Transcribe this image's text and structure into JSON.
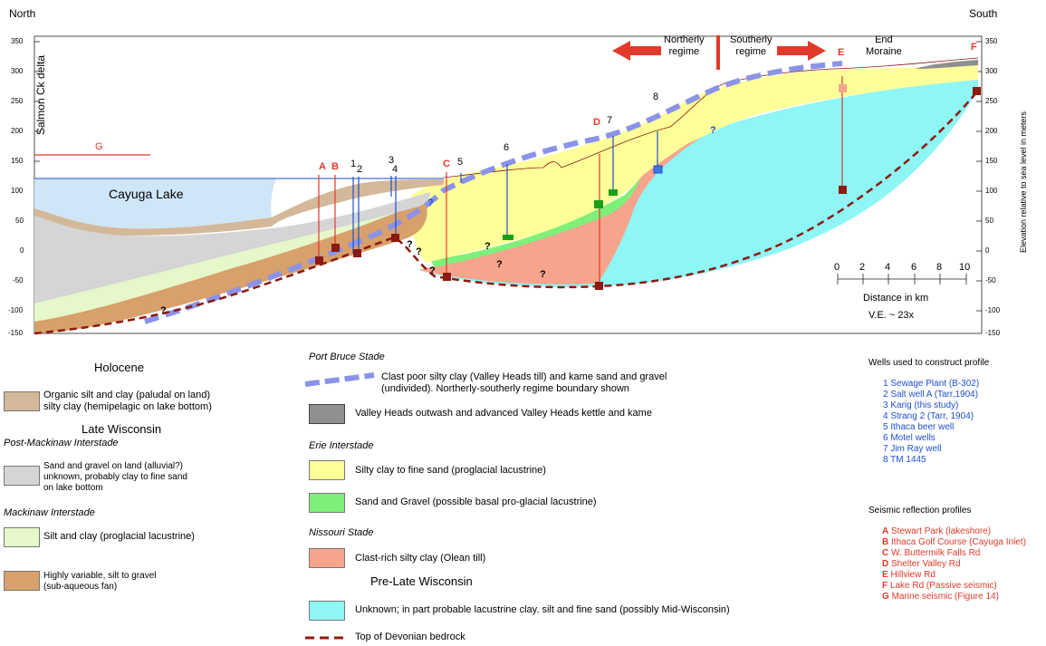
{
  "header": {
    "north": "North",
    "south": "South"
  },
  "axes": {
    "left_ticks": [
      "350",
      "300",
      "250",
      "200",
      "150",
      "100",
      "50",
      "0",
      "-50",
      "-100",
      "-150"
    ],
    "right_ticks": [
      "350",
      "300",
      "250",
      "200",
      "150",
      "100",
      "50",
      "0",
      "-50",
      "-100",
      "-150"
    ],
    "right_label": "Elevation relative to sea level in meters"
  },
  "profile_labels": {
    "salmon_ck": "Salmon Ck delta",
    "cayuga_lake": "Cayuga Lake",
    "northerly": [
      "Northerly",
      "regime"
    ],
    "southerly": [
      "Southerly",
      "regime"
    ],
    "end_moraine": [
      "End",
      "Moraine"
    ],
    "seismic_letters": {
      "A": "A",
      "B": "B",
      "C": "C",
      "D": "D",
      "E": "E",
      "F": "F",
      "G": "G"
    },
    "well_numbers": {
      "n1": "1",
      "n2": "2",
      "n3": "3",
      "n4": "4",
      "n5": "5",
      "n6": "6",
      "n7": "7",
      "n8": "8"
    },
    "question": "?"
  },
  "scale": {
    "ticks": [
      "0",
      "2",
      "4",
      "6",
      "8",
      "10"
    ],
    "label": "Distance in km",
    "ve": "V.E. ~ 23x"
  },
  "legend_left": {
    "holocene_title": "Holocene",
    "holocene_item": [
      "Organic silt and clay (paludal on land)",
      "silty clay (hemipelagic on lake bottom)"
    ],
    "late_wisconsin_title": "Late Wisconsin",
    "post_mackinaw_title": "Post-Mackinaw Interstade",
    "post_mackinaw_item": [
      "Sand and gravel on land (alluvial?)",
      "unknown, probably clay to fine sand",
      "on lake bottom"
    ],
    "mackinaw_title": "Mackinaw Interstade",
    "mackinaw_item": "Silt and clay (proglacial lacustrine)",
    "fan_item": [
      "Highly variable, silt to gravel",
      "(sub-aqueous fan)"
    ]
  },
  "legend_mid": {
    "port_bruce_title": "Port Bruce Stade",
    "till_item": [
      "Clast poor silty clay (Valley Heads till) and kame sand and gravel",
      "(undivided). Northerly-southerly regime boundary shown"
    ],
    "outwash_item": "Valley Heads outwash and advanced Valley Heads kettle and kame",
    "erie_title": "Erie Interstade",
    "silty_item": "Silty clay to fine sand (proglacial lacustrine)",
    "sand_gravel_item": "Sand and Gravel (possible basal pro-glacial lacustrine)",
    "nissouri_title": "Nissouri Stade",
    "olean_item": "Clast-rich silty clay (Olean till)",
    "pre_late_title": "Pre-Late Wisconsin",
    "unknown_item": "Unknown; in part probable lacustrine clay. silt and fine sand (possibly Mid-Wisconsin)",
    "bedrock_item": "Top of Devonian bedrock"
  },
  "wells": {
    "title": "Wells used to construct profile",
    "items": [
      "1 Sewage Plant (B-302)",
      "2 Salt well A (Tarr,1904)",
      "3 Karig (this study)",
      "4 Strang 2 (Tarr, 1904)",
      "5 Ithaca beer well",
      "6 Motel wells",
      "7 Jim Ray well",
      "8  TM 1445"
    ]
  },
  "seismic": {
    "title": "Seismic reflection profiles",
    "items": [
      {
        "letter": "A",
        "text": "Stewart Park (lakeshore)"
      },
      {
        "letter": "B",
        "text": "Ithaca Golf Course (Cayuga Inlet)"
      },
      {
        "letter": "C",
        "text": "W. Buttermilk Falls Rd"
      },
      {
        "letter": "D",
        "text": "Shelter Valley Rd"
      },
      {
        "letter": "E",
        "text": "Hillview Rd"
      },
      {
        "letter": "F",
        "text": "Lake Rd (Passive seismic)"
      },
      {
        "letter": "G",
        "text": "Marine seismic (Figure 14)"
      }
    ]
  },
  "colors": {
    "holocene": "#d4b89a",
    "post_mackinaw": "#d5d5d5",
    "mackinaw": "#e6f7c9",
    "fan": "#d8a06a",
    "outwash": "#8f8f8f",
    "silty": "#ffff9a",
    "sand_gravel": "#7ef07a",
    "olean": "#f7a48c",
    "unknown": "#8ff6f6",
    "lake": "#cfe6f8",
    "till_line": "#8b93e8",
    "bedrock": "#8b1a10",
    "red": "#e13a2a",
    "blue": "#1f4fd1"
  }
}
